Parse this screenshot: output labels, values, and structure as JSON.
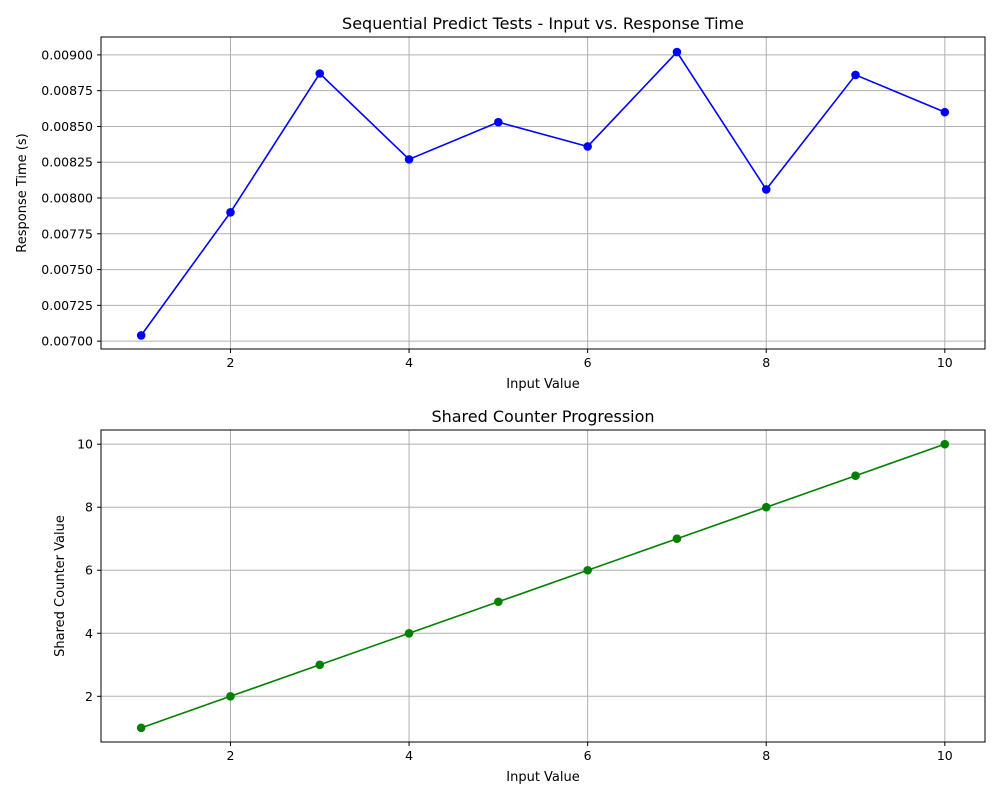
{
  "chart_data": [
    {
      "type": "line",
      "title": "Sequential Predict Tests - Input vs. Response Time",
      "xlabel": "Input Value",
      "ylabel": "Response Time (s)",
      "xlim": [
        0.55,
        10.45
      ],
      "ylim": [
        0.006945,
        0.009125
      ],
      "xticks": [
        2,
        4,
        6,
        8,
        10
      ],
      "xtick_labels": [
        "2",
        "4",
        "6",
        "8",
        "10"
      ],
      "yticks": [
        0.007,
        0.00725,
        0.0075,
        0.00775,
        0.008,
        0.00825,
        0.0085,
        0.00875,
        0.009
      ],
      "ytick_labels": [
        "0.00700",
        "0.00725",
        "0.00750",
        "0.00775",
        "0.00800",
        "0.00825",
        "0.00850",
        "0.00875",
        "0.00900"
      ],
      "grid": true,
      "x": [
        1,
        2,
        3,
        4,
        5,
        6,
        7,
        8,
        9,
        10
      ],
      "series": [
        {
          "values": [
            0.00704,
            0.0079,
            0.00887,
            0.00827,
            0.00853,
            0.00836,
            0.00902,
            0.00806,
            0.00886,
            0.0086
          ],
          "color": "#0000ff",
          "marker": "circle"
        }
      ]
    },
    {
      "type": "line",
      "title": "Shared Counter Progression",
      "xlabel": "Input Value",
      "ylabel": "Shared Counter Value",
      "xlim": [
        0.55,
        10.45
      ],
      "ylim": [
        0.55,
        10.45
      ],
      "xticks": [
        2,
        4,
        6,
        8,
        10
      ],
      "xtick_labels": [
        "2",
        "4",
        "6",
        "8",
        "10"
      ],
      "yticks": [
        2,
        4,
        6,
        8,
        10
      ],
      "ytick_labels": [
        "2",
        "4",
        "6",
        "8",
        "10"
      ],
      "grid": true,
      "x": [
        1,
        2,
        3,
        4,
        5,
        6,
        7,
        8,
        9,
        10
      ],
      "series": [
        {
          "values": [
            1,
            2,
            3,
            4,
            5,
            6,
            7,
            8,
            9,
            10
          ],
          "color": "#008000",
          "marker": "circle"
        }
      ]
    }
  ]
}
